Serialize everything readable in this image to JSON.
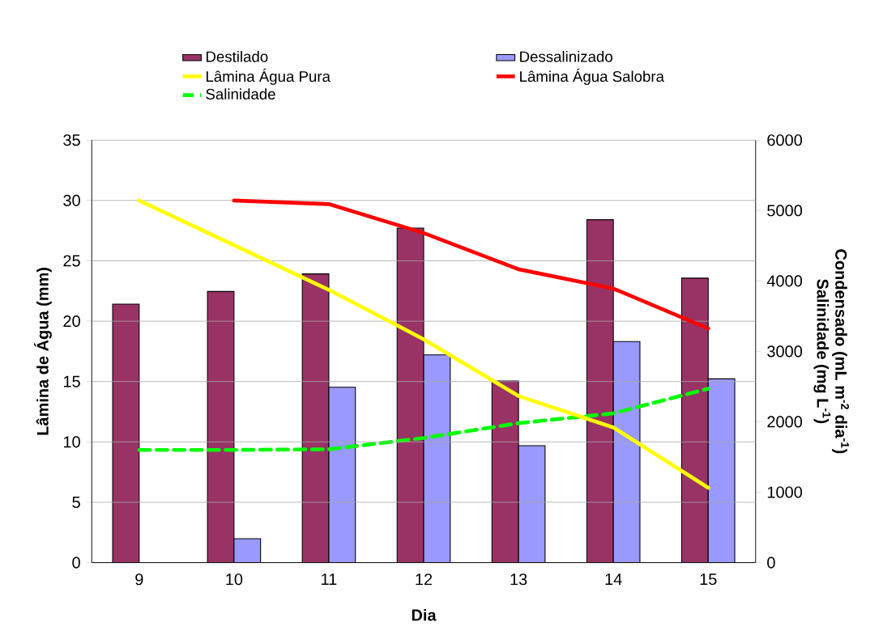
{
  "chart_data": {
    "type": "bar",
    "xlabel": "Dia",
    "ylabel": "Lâmina de Água (mm)",
    "y2label": [
      "Condensado (mL m$^{-2}$ dia$^{-1}$)",
      "Salinidade (mg L$^{-1}$)"
    ],
    "categories": [
      "9",
      "10",
      "11",
      "12",
      "13",
      "14",
      "15"
    ],
    "ylim": [
      0,
      35
    ],
    "yticks": [
      0,
      5,
      10,
      15,
      20,
      25,
      30,
      35
    ],
    "y2lim": [
      0,
      6000
    ],
    "y2ticks": [
      0,
      1000,
      2000,
      3000,
      4000,
      5000,
      6000
    ],
    "grid": "y",
    "legend": "top",
    "series": [
      {
        "name": "Destilado",
        "axis": "y2",
        "color": "#993366",
        "values": [
          3670,
          3850,
          4100,
          4750,
          2580,
          4870,
          4040
        ]
      },
      {
        "name": "Dessalinizado",
        "axis": "y2",
        "color": "#9999ff",
        "values": [
          null,
          340,
          2490,
          2950,
          1660,
          3140,
          2610
        ]
      },
      {
        "name": "Lâmina Água Pura",
        "type": "line",
        "color": "#ffff00",
        "values": [
          30.0,
          26.3,
          22.6,
          18.5,
          13.8,
          11.2,
          6.2
        ]
      },
      {
        "name": "Lâmina Água Salobra",
        "type": "line",
        "color": "#ff0000",
        "values": [
          null,
          30.0,
          29.7,
          27.3,
          24.3,
          22.7,
          19.4
        ]
      },
      {
        "name": "Salinidade",
        "type": "line",
        "axis": "y2",
        "line_style": "dashed",
        "color": "#00ff00",
        "values": [
          1600,
          1600,
          1610,
          1770,
          1980,
          2120,
          2470
        ]
      }
    ]
  }
}
